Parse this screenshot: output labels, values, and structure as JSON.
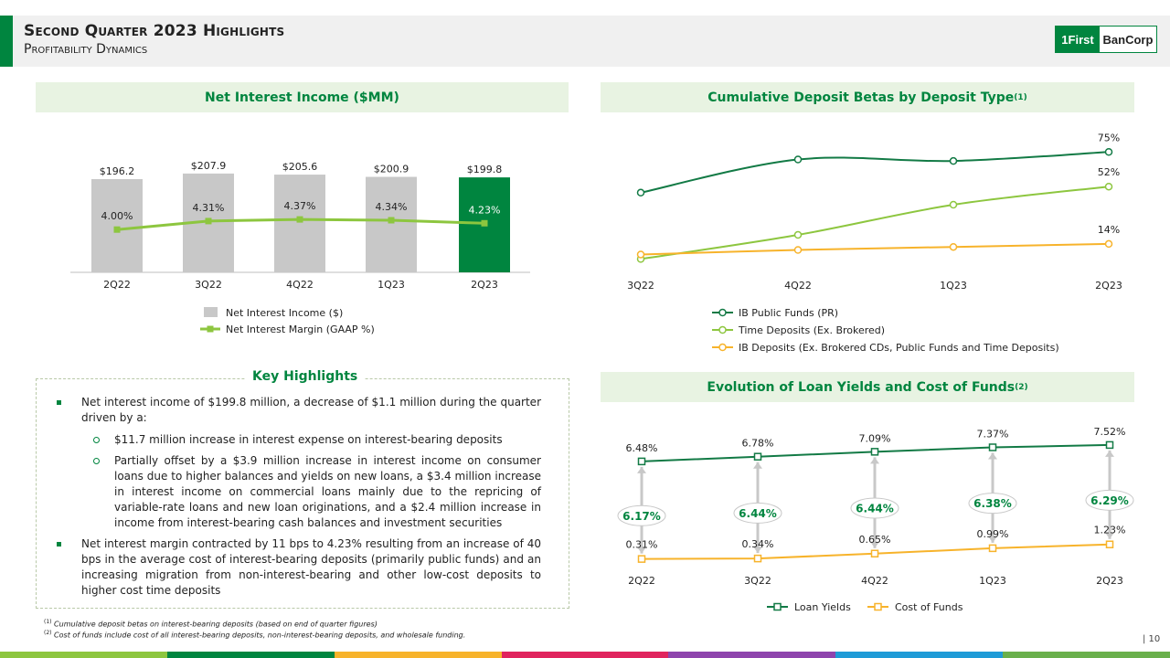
{
  "header": {
    "title": "Second Quarter 2023 Highlights",
    "subtitle": "Profitability Dynamics",
    "logo_part1": "1First",
    "logo_part2": "BanCorp"
  },
  "panels": {
    "nii_title": "Net Interest Income ($MM)",
    "betas_title": "Cumulative Deposit Betas by Deposit Type",
    "betas_sup": "(1)",
    "yields_title": "Evolution of Loan Yields and Cost of Funds",
    "yields_sup": "(2)"
  },
  "chart_data": [
    {
      "type": "bar",
      "title": "Net Interest Income ($MM)",
      "categories": [
        "2Q22",
        "3Q22",
        "4Q22",
        "1Q23",
        "2Q23"
      ],
      "series": [
        {
          "name": "Net Interest Income ($)",
          "values": [
            196.2,
            207.9,
            205.6,
            200.9,
            199.8
          ],
          "labels": [
            "$196.2",
            "$207.9",
            "$205.6",
            "$200.9",
            "$199.8"
          ]
        },
        {
          "name": "Net Interest Margin (GAAP %)",
          "values": [
            4.0,
            4.31,
            4.37,
            4.34,
            4.23
          ],
          "labels": [
            "4.00%",
            "4.31%",
            "4.37%",
            "4.34%",
            "4.23%"
          ]
        }
      ],
      "highlight_index": 4,
      "ylim": [
        0,
        230
      ]
    },
    {
      "type": "line",
      "title": "Cumulative Deposit Betas by Deposit Type",
      "categories": [
        "3Q22",
        "4Q22",
        "1Q23",
        "2Q23"
      ],
      "series": [
        {
          "name": "IB Public Funds (PR)",
          "values": [
            48,
            70,
            69,
            75
          ],
          "end_label": "75%",
          "color": "#127a45"
        },
        {
          "name": "Time Deposits (Ex. Brokered)",
          "values": [
            4,
            20,
            40,
            52
          ],
          "end_label": "52%",
          "color": "#8dc63f"
        },
        {
          "name": "IB Deposits (Ex. Brokered CDs, Public Funds and Time Deposits)",
          "values": [
            7,
            10,
            12,
            14
          ],
          "end_label": "14%",
          "color": "#f7b32b"
        }
      ],
      "ylim": [
        0,
        90
      ]
    },
    {
      "type": "line",
      "title": "Evolution of Loan Yields and Cost of Funds",
      "categories": [
        "2Q22",
        "3Q22",
        "4Q22",
        "1Q23",
        "2Q23"
      ],
      "series": [
        {
          "name": "Loan Yields",
          "values": [
            6.48,
            6.78,
            7.09,
            7.37,
            7.52
          ],
          "labels": [
            "6.48%",
            "6.78%",
            "7.09%",
            "7.37%",
            "7.52%"
          ],
          "color": "#127a45"
        },
        {
          "name": "Cost of Funds",
          "values": [
            0.31,
            0.34,
            0.65,
            0.99,
            1.23
          ],
          "labels": [
            "0.31%",
            "0.34%",
            "0.65%",
            "0.99%",
            "1.23%"
          ],
          "color": "#f7b32b"
        }
      ],
      "spread_labels": [
        "6.17%",
        "6.44%",
        "6.44%",
        "6.38%",
        "6.29%"
      ],
      "ylim": [
        0,
        8
      ]
    }
  ],
  "key_highlights": {
    "title": "Key Highlights",
    "item1": "Net interest income of $199.8 million, a decrease of $1.1 million during the quarter driven by a:",
    "sub1": "$11.7 million increase in interest expense on interest-bearing deposits",
    "sub2": "Partially offset by a $3.9 million increase in interest income on consumer loans due to higher balances and yields on new loans, a $3.4 million increase in interest income on commercial loans mainly due to the repricing of variable-rate loans and new loan originations, and a $2.4 million increase in income from interest-bearing cash balances and investment securities",
    "item2": "Net interest margin contracted by 11 bps to 4.23% resulting from an increase of 40 bps in the average cost of interest-bearing deposits (primarily public funds) and an increasing migration from non-interest-bearing and other low-cost deposits to higher cost time deposits"
  },
  "footnotes": {
    "fn1_mark": "(1)",
    "fn1": "Cumulative deposit betas on interest-bearing deposits (based on end of quarter figures)",
    "fn2_mark": "(2)",
    "fn2": "Cost of funds include cost of all interest-bearing deposits, non-interest-bearing deposits, and wholesale funding."
  },
  "page_number": "| 10",
  "colors": {
    "brand_green": "#00853f",
    "light_green": "#8dc63f",
    "bar_gray": "#c8c8c8",
    "orange": "#f7b32b"
  }
}
